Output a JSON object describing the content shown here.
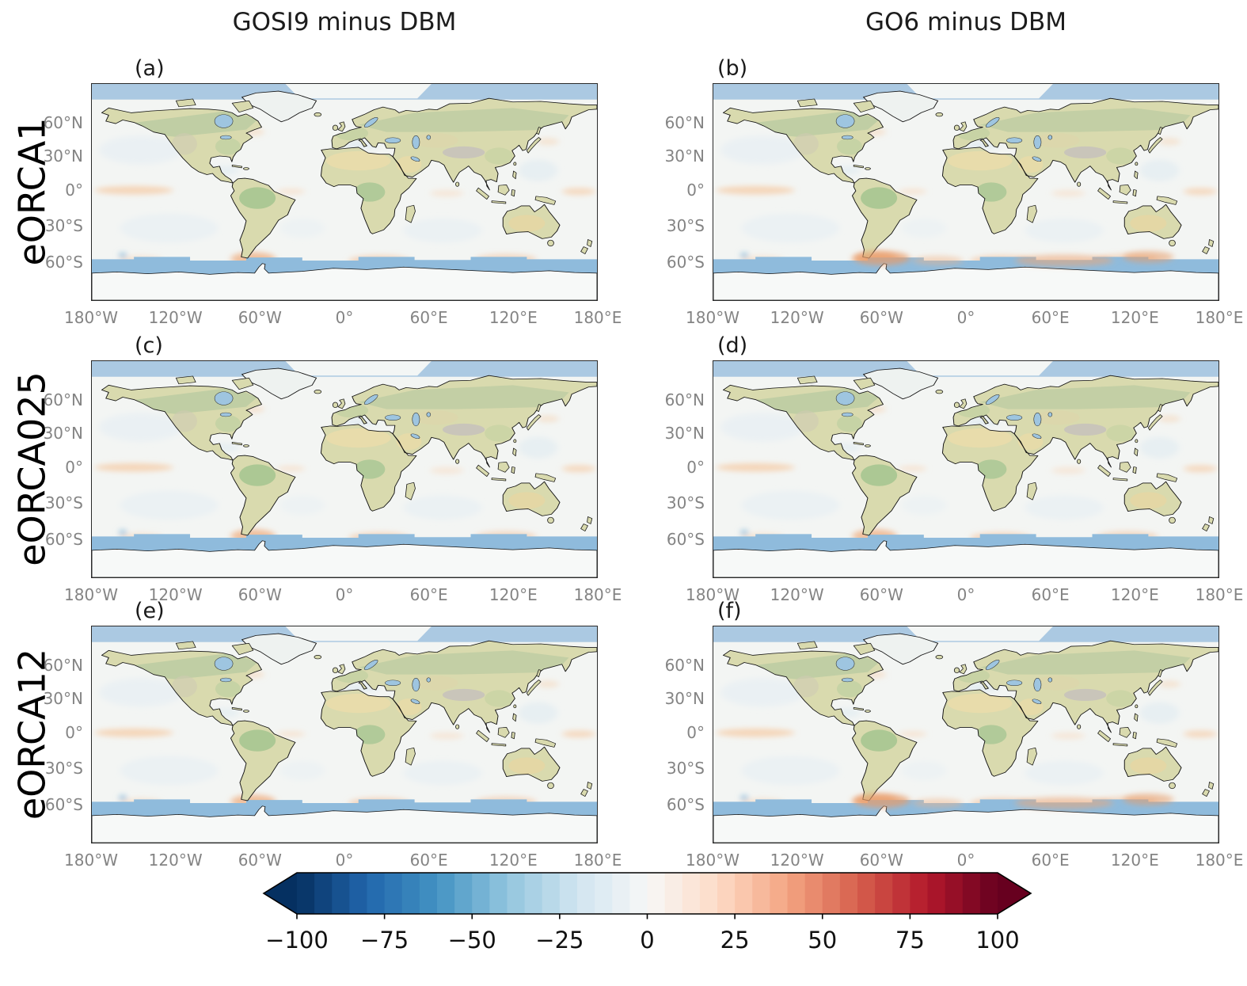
{
  "figure": {
    "column_titles": [
      "GOSI9 minus DBM",
      "GO6 minus DBM"
    ],
    "row_labels": [
      "eORCA1",
      "eORCA025",
      "eORCA12"
    ],
    "panel_labels": [
      "(a)",
      "(b)",
      "(c)",
      "(d)",
      "(e)",
      "(f)"
    ],
    "lat_ticks": [
      "60°N",
      "30°N",
      "0°",
      "30°S",
      "60°S"
    ],
    "lon_ticks": [
      "180°W",
      "120°W",
      "60°W",
      "0°",
      "60°E",
      "120°E",
      "180°E"
    ],
    "colorbar_ticks": [
      "−100",
      "−75",
      "−50",
      "−25",
      "0",
      "25",
      "50",
      "75",
      "100"
    ]
  },
  "colors": {
    "colormap_anchors": [
      "#053061",
      "#2166ac",
      "#4393c3",
      "#92c5de",
      "#d1e5f0",
      "#f7f7f7",
      "#fddbc7",
      "#f4a582",
      "#d6604d",
      "#b2182b",
      "#67001f"
    ],
    "ocean": "#f3f5f3",
    "land": "#d9daae",
    "sea_ice": "#8fbbdc",
    "tick_label": "#848484"
  },
  "chart_data": {
    "type": "heatmap",
    "layout": "3x2 grid of global difference maps sharing one horizontal diverging colorbar",
    "columns": [
      "GOSI9 minus DBM",
      "GO6 minus DBM"
    ],
    "rows": [
      "eORCA1",
      "eORCA025",
      "eORCA12"
    ],
    "panels": [
      {
        "label": "(a)",
        "row": "eORCA1",
        "column": "GOSI9 minus DBM"
      },
      {
        "label": "(b)",
        "row": "eORCA1",
        "column": "GO6 minus DBM"
      },
      {
        "label": "(c)",
        "row": "eORCA025",
        "column": "GOSI9 minus DBM"
      },
      {
        "label": "(d)",
        "row": "eORCA025",
        "column": "GO6 minus DBM"
      },
      {
        "label": "(e)",
        "row": "eORCA12",
        "column": "GOSI9 minus DBM"
      },
      {
        "label": "(f)",
        "row": "eORCA12",
        "column": "GO6 minus DBM"
      }
    ],
    "lon_ticks_deg": [
      -180,
      -120,
      -60,
      0,
      60,
      120,
      180
    ],
    "lat_ticks_deg": [
      60,
      30,
      0,
      -30,
      -60
    ],
    "colorbar": {
      "ticks": [
        -100,
        -75,
        -50,
        -25,
        0,
        25,
        50,
        75,
        100
      ],
      "colormap": "RdBu_r (blue-white-red diverging)",
      "extend": "both",
      "notes": "Differences are near zero (white) over most of the ocean; positive (orange) anomalies along the equatorial Pacific and the Southern Ocean near 50-60S, negative (blue) band of sea-ice covered ocean around Antarctica and the Arctic."
    }
  }
}
